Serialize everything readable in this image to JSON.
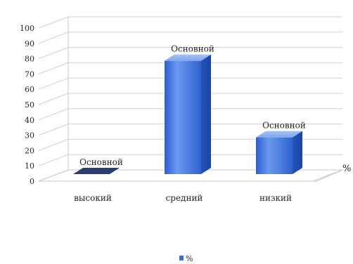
{
  "chart_data": {
    "type": "bar",
    "title": "",
    "xlabel": "",
    "ylabel": "",
    "depth_axis_label": "%",
    "categories": [
      "высокий",
      "средний",
      "низкий"
    ],
    "series": [
      {
        "name": "%",
        "values": [
          0,
          74,
          24
        ],
        "data_labels": [
          "Основной",
          "Основной",
          "Основной"
        ],
        "color": "#3a6fd8"
      }
    ],
    "ylim": [
      0,
      100
    ],
    "yticks": [
      0,
      10,
      20,
      30,
      40,
      50,
      60,
      70,
      80,
      90,
      100
    ],
    "grid": true,
    "legend": "bottom",
    "style": "3d-column"
  }
}
